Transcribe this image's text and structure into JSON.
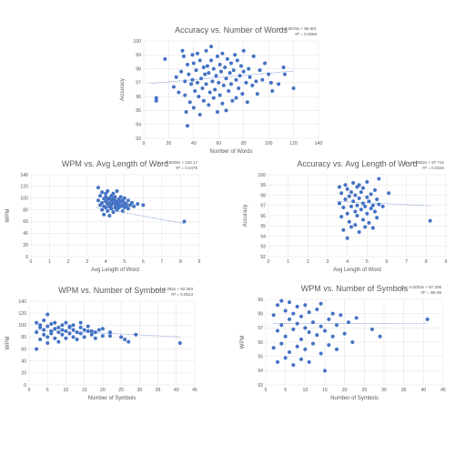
{
  "chart_data": [
    {
      "type": "scatter",
      "title": "Accuracy vs. Number of Words",
      "equation": "y = 0.0078x + 96.901",
      "r2": "R² = 0.0068",
      "xlabel": "Number of Words",
      "ylabel": "Accuracy",
      "xlim": [
        0,
        140
      ],
      "ylim": [
        93,
        100
      ],
      "xticks": [
        "0",
        "20",
        "40",
        "60",
        "80",
        "100",
        "120",
        "140"
      ],
      "yticks": [
        "93",
        "94",
        "95",
        "96",
        "97",
        "98",
        "99",
        "100"
      ],
      "trend": {
        "slope": 0.0078,
        "intercept": 96.901,
        "x_range": [
          5,
          120
        ]
      },
      "grid": true,
      "points": [
        [
          10,
          95.7
        ],
        [
          10,
          95.9
        ],
        [
          17,
          98.7
        ],
        [
          24,
          96.7
        ],
        [
          26,
          97.4
        ],
        [
          28,
          96.3
        ],
        [
          30,
          97.8
        ],
        [
          31,
          99.3
        ],
        [
          32,
          98.9
        ],
        [
          33,
          96.1
        ],
        [
          33,
          97.1
        ],
        [
          34,
          94.9
        ],
        [
          35,
          93.9
        ],
        [
          35,
          98.3
        ],
        [
          36,
          97.6
        ],
        [
          37,
          95.6
        ],
        [
          38,
          96.9
        ],
        [
          39,
          99.0
        ],
        [
          39,
          97.2
        ],
        [
          40,
          98.4
        ],
        [
          40,
          95.2
        ],
        [
          41,
          96.4
        ],
        [
          42,
          97.9
        ],
        [
          43,
          97.0
        ],
        [
          43,
          99.1
        ],
        [
          44,
          96.0
        ],
        [
          45,
          98.6
        ],
        [
          45,
          94.7
        ],
        [
          46,
          97.3
        ],
        [
          47,
          96.6
        ],
        [
          48,
          98.1
        ],
        [
          48,
          95.7
        ],
        [
          49,
          97.6
        ],
        [
          50,
          96.9
        ],
        [
          50,
          99.3
        ],
        [
          51,
          98.2
        ],
        [
          52,
          95.4
        ],
        [
          52,
          97.7
        ],
        [
          53,
          96.3
        ],
        [
          54,
          98.6
        ],
        [
          54,
          99.6
        ],
        [
          55,
          97.1
        ],
        [
          56,
          95.9
        ],
        [
          56,
          98.0
        ],
        [
          57,
          96.5
        ],
        [
          58,
          97.5
        ],
        [
          59,
          94.9
        ],
        [
          59,
          98.9
        ],
        [
          60,
          97.0
        ],
        [
          61,
          96.1
        ],
        [
          61,
          98.3
        ],
        [
          62,
          97.8
        ],
        [
          63,
          95.5
        ],
        [
          63,
          99.1
        ],
        [
          64,
          96.8
        ],
        [
          65,
          98.1
        ],
        [
          66,
          97.3
        ],
        [
          66,
          95.0
        ],
        [
          67,
          98.7
        ],
        [
          68,
          96.4
        ],
        [
          69,
          97.7
        ],
        [
          70,
          98.4
        ],
        [
          70,
          96.9
        ],
        [
          71,
          95.7
        ],
        [
          72,
          97.9
        ],
        [
          73,
          99.0
        ],
        [
          74,
          97.2
        ],
        [
          74,
          95.9
        ],
        [
          75,
          98.6
        ],
        [
          76,
          96.6
        ],
        [
          77,
          97.5
        ],
        [
          78,
          98.2
        ],
        [
          79,
          96.2
        ],
        [
          80,
          97.8
        ],
        [
          80,
          99.3
        ],
        [
          82,
          97.0
        ],
        [
          83,
          95.6
        ],
        [
          84,
          98.0
        ],
        [
          85,
          97.4
        ],
        [
          87,
          96.8
        ],
        [
          88,
          98.9
        ],
        [
          90,
          97.1
        ],
        [
          91,
          96.2
        ],
        [
          93,
          97.9
        ],
        [
          95,
          97.2
        ],
        [
          97,
          98.4
        ],
        [
          100,
          97.6
        ],
        [
          102,
          97.0
        ],
        [
          103,
          96.4
        ],
        [
          108,
          96.9
        ],
        [
          112,
          98.1
        ],
        [
          113,
          97.6
        ],
        [
          120,
          96.6
        ]
      ]
    },
    {
      "type": "scatter",
      "title": "WPM vs. Avg Length of Word",
      "equation": "y = -5.8008x + 104.17",
      "r2": "R² = 0.0475",
      "xlabel": "Avg Length of Word",
      "ylabel": "WPM",
      "xlim": [
        0,
        9
      ],
      "ylim": [
        0,
        140
      ],
      "xticks": [
        "0",
        "1",
        "2",
        "3",
        "4",
        "5",
        "6",
        "7",
        "8",
        "9"
      ],
      "yticks": [
        "0",
        "20",
        "40",
        "60",
        "80",
        "100",
        "120",
        "140"
      ],
      "trend": {
        "slope": -5.8008,
        "intercept": 104.17,
        "x_range": [
          3.5,
          8.2
        ]
      },
      "grid": true,
      "points": [
        [
          3.6,
          118
        ],
        [
          3.6,
          96
        ],
        [
          3.7,
          88
        ],
        [
          3.7,
          104
        ],
        [
          3.8,
          92
        ],
        [
          3.8,
          80
        ],
        [
          3.8,
          110
        ],
        [
          3.9,
          99
        ],
        [
          3.9,
          86
        ],
        [
          3.9,
          72
        ],
        [
          4.0,
          94
        ],
        [
          4.0,
          102
        ],
        [
          4.0,
          84
        ],
        [
          4.0,
          108
        ],
        [
          4.1,
          90
        ],
        [
          4.1,
          98
        ],
        [
          4.1,
          78
        ],
        [
          4.1,
          112
        ],
        [
          4.2,
          92
        ],
        [
          4.2,
          85
        ],
        [
          4.2,
          100
        ],
        [
          4.2,
          70
        ],
        [
          4.3,
          96
        ],
        [
          4.3,
          88
        ],
        [
          4.3,
          104
        ],
        [
          4.3,
          82
        ],
        [
          4.4,
          92
        ],
        [
          4.4,
          99
        ],
        [
          4.4,
          76
        ],
        [
          4.4,
          108
        ],
        [
          4.5,
          90
        ],
        [
          4.5,
          84
        ],
        [
          4.5,
          96
        ],
        [
          4.5,
          102
        ],
        [
          4.6,
          88
        ],
        [
          4.6,
          94
        ],
        [
          4.6,
          80
        ],
        [
          4.6,
          112
        ],
        [
          4.7,
          90
        ],
        [
          4.7,
          98
        ],
        [
          4.7,
          84
        ],
        [
          4.8,
          94
        ],
        [
          4.8,
          86
        ],
        [
          4.8,
          102
        ],
        [
          4.9,
          88
        ],
        [
          4.9,
          96
        ],
        [
          4.9,
          78
        ],
        [
          5.0,
          92
        ],
        [
          5.0,
          84
        ],
        [
          5.0,
          100
        ],
        [
          5.1,
          90
        ],
        [
          5.1,
          86
        ],
        [
          5.2,
          96
        ],
        [
          5.2,
          82
        ],
        [
          5.3,
          88
        ],
        [
          5.4,
          92
        ],
        [
          5.5,
          86
        ],
        [
          5.7,
          90
        ],
        [
          6.0,
          88
        ],
        [
          8.2,
          60
        ]
      ]
    },
    {
      "type": "scatter",
      "title": "Accuracy vs. Avg Length of Word",
      "equation": "y = -0.0902x + 97.712",
      "r2": "R² = 0.0025",
      "xlabel": "Avg Length of Word",
      "ylabel": "Accuracy",
      "xlim": [
        0,
        9
      ],
      "ylim": [
        92,
        100
      ],
      "xticks": [
        "0",
        "1",
        "2",
        "3",
        "4",
        "5",
        "6",
        "7",
        "8",
        "9"
      ],
      "yticks": [
        "92",
        "93",
        "94",
        "95",
        "96",
        "97",
        "98",
        "99",
        "100"
      ],
      "trend": {
        "slope": -0.0902,
        "intercept": 97.712,
        "x_range": [
          3.5,
          8.2
        ]
      },
      "grid": true,
      "points": [
        [
          3.6,
          98.8
        ],
        [
          3.6,
          97.2
        ],
        [
          3.7,
          95.9
        ],
        [
          3.7,
          98.2
        ],
        [
          3.8,
          96.8
        ],
        [
          3.8,
          94.6
        ],
        [
          3.9,
          97.6
        ],
        [
          3.9,
          99.0
        ],
        [
          4.0,
          96.2
        ],
        [
          4.0,
          98.6
        ],
        [
          4.0,
          93.8
        ],
        [
          4.1,
          97.9
        ],
        [
          4.1,
          95.4
        ],
        [
          4.2,
          98.3
        ],
        [
          4.2,
          96.9
        ],
        [
          4.2,
          94.9
        ],
        [
          4.3,
          97.4
        ],
        [
          4.3,
          99.2
        ],
        [
          4.4,
          96.4
        ],
        [
          4.4,
          98.0
        ],
        [
          4.4,
          95.1
        ],
        [
          4.5,
          97.0
        ],
        [
          4.5,
          98.8
        ],
        [
          4.5,
          96.0
        ],
        [
          4.6,
          97.7
        ],
        [
          4.6,
          94.4
        ],
        [
          4.6,
          99.0
        ],
        [
          4.7,
          96.6
        ],
        [
          4.7,
          98.3
        ],
        [
          4.8,
          97.2
        ],
        [
          4.8,
          95.6
        ],
        [
          4.8,
          98.7
        ],
        [
          4.9,
          96.9
        ],
        [
          4.9,
          94.9
        ],
        [
          5.0,
          97.8
        ],
        [
          5.0,
          96.2
        ],
        [
          5.0,
          99.3
        ],
        [
          5.1,
          97.4
        ],
        [
          5.1,
          95.3
        ],
        [
          5.2,
          98.1
        ],
        [
          5.2,
          96.7
        ],
        [
          5.3,
          97.0
        ],
        [
          5.3,
          94.8
        ],
        [
          5.4,
          98.5
        ],
        [
          5.4,
          96.4
        ],
        [
          5.5,
          97.6
        ],
        [
          5.5,
          95.8
        ],
        [
          5.6,
          97.1
        ],
        [
          5.6,
          99.6
        ],
        [
          5.8,
          96.9
        ],
        [
          6.1,
          98.2
        ],
        [
          8.2,
          95.5
        ]
      ]
    },
    {
      "type": "scatter",
      "title": "WPM vs. Number of Symbols",
      "equation": "y = -0.293x + 92.393",
      "r2": "R² = 0.0513",
      "xlabel": "Number of Symbols",
      "ylabel": "WPM",
      "xlim": [
        0,
        45
      ],
      "ylim": [
        0,
        140
      ],
      "xticks": [
        "0",
        "5",
        "10",
        "15",
        "20",
        "25",
        "30",
        "35",
        "40",
        "45"
      ],
      "yticks": [
        "0",
        "20",
        "40",
        "60",
        "80",
        "100",
        "120",
        "140"
      ],
      "trend": {
        "slope": -0.293,
        "intercept": 92.393,
        "x_range": [
          2,
          41
        ]
      },
      "grid": true,
      "points": [
        [
          2,
          60
        ],
        [
          2,
          88
        ],
        [
          2,
          104
        ],
        [
          3,
          76
        ],
        [
          3,
          96
        ],
        [
          3,
          100
        ],
        [
          4,
          84
        ],
        [
          4,
          108
        ],
        [
          4,
          92
        ],
        [
          5,
          118
        ],
        [
          5,
          80
        ],
        [
          5,
          98
        ],
        [
          5,
          70
        ],
        [
          6,
          90
        ],
        [
          6,
          102
        ],
        [
          6,
          86
        ],
        [
          7,
          94
        ],
        [
          7,
          78
        ],
        [
          7,
          104
        ],
        [
          8,
          88
        ],
        [
          8,
          96
        ],
        [
          8,
          72
        ],
        [
          9,
          100
        ],
        [
          9,
          84
        ],
        [
          9,
          92
        ],
        [
          10,
          90
        ],
        [
          10,
          104
        ],
        [
          10,
          78
        ],
        [
          11,
          96
        ],
        [
          11,
          86
        ],
        [
          11,
          98
        ],
        [
          12,
          80
        ],
        [
          12,
          92
        ],
        [
          12,
          100
        ],
        [
          13,
          88
        ],
        [
          13,
          76
        ],
        [
          14,
          96
        ],
        [
          14,
          86
        ],
        [
          14,
          104
        ],
        [
          15,
          92
        ],
        [
          15,
          80
        ],
        [
          16,
          90
        ],
        [
          16,
          98
        ],
        [
          17,
          84
        ],
        [
          17,
          90
        ],
        [
          18,
          88
        ],
        [
          18,
          78
        ],
        [
          19,
          92
        ],
        [
          20,
          82
        ],
        [
          20,
          94
        ],
        [
          22,
          88
        ],
        [
          22,
          82
        ],
        [
          25,
          80
        ],
        [
          26,
          76
        ],
        [
          27,
          72
        ],
        [
          29,
          84
        ],
        [
          41,
          70
        ]
      ]
    },
    {
      "type": "scatter",
      "title": "WPM vs. Number of Symbols",
      "equation": "y = -0.0003x + 97.308",
      "r2": "R² = 3E-06",
      "xlabel": "Number of Symbols",
      "ylabel": "WPM",
      "xlim": [
        0,
        45
      ],
      "ylim": [
        93,
        99
      ],
      "xticks": [
        "0",
        "5",
        "10",
        "15",
        "20",
        "25",
        "30",
        "35",
        "40",
        "45"
      ],
      "yticks": [
        "93",
        "94",
        "95",
        "96",
        "97",
        "98",
        "99"
      ],
      "trend": {
        "slope": -0.0003,
        "intercept": 97.308,
        "x_range": [
          2,
          41
        ]
      },
      "grid": true,
      "points": [
        [
          2,
          97.9
        ],
        [
          2,
          95.6
        ],
        [
          3,
          98.6
        ],
        [
          3,
          96.8
        ],
        [
          3,
          94.6
        ],
        [
          4,
          97.2
        ],
        [
          4,
          98.9
        ],
        [
          4,
          95.9
        ],
        [
          5,
          96.4
        ],
        [
          5,
          98.2
        ],
        [
          5,
          94.9
        ],
        [
          6,
          97.6
        ],
        [
          6,
          95.3
        ],
        [
          6,
          98.8
        ],
        [
          7,
          96.9
        ],
        [
          7,
          94.4
        ],
        [
          7,
          98.0
        ],
        [
          8,
          97.3
        ],
        [
          8,
          95.7
        ],
        [
          8,
          98.5
        ],
        [
          9,
          96.2
        ],
        [
          9,
          97.8
        ],
        [
          9,
          94.8
        ],
        [
          10,
          97.0
        ],
        [
          10,
          98.6
        ],
        [
          10,
          95.5
        ],
        [
          11,
          96.7
        ],
        [
          11,
          98.1
        ],
        [
          11,
          94.6
        ],
        [
          12,
          97.4
        ],
        [
          12,
          95.9
        ],
        [
          13,
          98.3
        ],
        [
          13,
          96.5
        ],
        [
          14,
          97.1
        ],
        [
          14,
          95.2
        ],
        [
          14,
          98.7
        ],
        [
          15,
          96.8
        ],
        [
          15,
          94.0
        ],
        [
          16,
          97.6
        ],
        [
          16,
          95.8
        ],
        [
          17,
          98.0
        ],
        [
          17,
          96.4
        ],
        [
          18,
          97.2
        ],
        [
          18,
          95.5
        ],
        [
          19,
          97.9
        ],
        [
          20,
          96.6
        ],
        [
          21,
          97.4
        ],
        [
          22,
          96.0
        ],
        [
          23,
          97.7
        ],
        [
          27,
          96.9
        ],
        [
          29,
          96.4
        ],
        [
          41,
          97.6
        ]
      ]
    }
  ]
}
